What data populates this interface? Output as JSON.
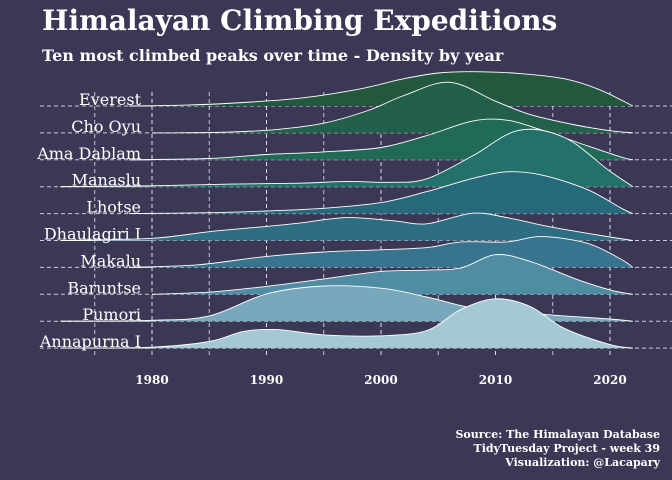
{
  "title": "Himalayan Climbing Expeditions",
  "subtitle": "Ten most climbed peaks over time - Density by year",
  "caption": {
    "line1": "Source: The Himalayan Database",
    "line2": "TidyTuesday Project - week 39",
    "line3": "Visualization: @Lacapary"
  },
  "colors": {
    "background": "#3b3856",
    "grid": "#ffffff",
    "outline": "#ffffff",
    "text": "#ffffff"
  },
  "chart_data": {
    "type": "area",
    "subtype": "ridgeline-density",
    "title": "Himalayan Climbing Expeditions",
    "subtitle": "Ten most climbed peaks over time - Density by year",
    "xlabel": "",
    "ylabel": "",
    "xlim": [
      1972,
      2024
    ],
    "xticks": [
      1980,
      1990,
      2000,
      2010,
      2020
    ],
    "grid": true,
    "legend": "none",
    "series": [
      {
        "name": "Everest",
        "color": "#23583f",
        "x": [
          1978,
          1983,
          1988,
          1993,
          1998,
          2002,
          2005,
          2008,
          2012,
          2016,
          2019,
          2022
        ],
        "y": [
          0.0,
          0.02,
          0.08,
          0.18,
          0.38,
          0.62,
          0.75,
          0.78,
          0.74,
          0.62,
          0.38,
          0.0
        ]
      },
      {
        "name": "Cho Oyu",
        "color": "#23604a",
        "x": [
          1982,
          1987,
          1991,
          1995,
          1999,
          2002,
          2006,
          2010,
          2013,
          2017,
          2020,
          2022
        ],
        "y": [
          0.0,
          0.02,
          0.08,
          0.22,
          0.52,
          0.85,
          1.15,
          0.72,
          0.42,
          0.18,
          0.05,
          0.0
        ]
      },
      {
        "name": "Ama Dablam",
        "color": "#226a58",
        "x": [
          1978,
          1985,
          1990,
          1995,
          2000,
          2004,
          2008,
          2011,
          2014,
          2018,
          2021,
          2022
        ],
        "y": [
          0.0,
          0.03,
          0.12,
          0.18,
          0.28,
          0.55,
          0.88,
          0.9,
          0.68,
          0.32,
          0.06,
          0.0
        ]
      },
      {
        "name": "Manaslu",
        "color": "#24716a",
        "x": [
          1972,
          1980,
          1987,
          1993,
          1997,
          2001,
          2004,
          2008,
          2012,
          2016,
          2020,
          2022
        ],
        "y": [
          0.0,
          0.02,
          0.06,
          0.08,
          0.12,
          0.1,
          0.18,
          0.7,
          1.28,
          1.12,
          0.35,
          0.0
        ]
      },
      {
        "name": "Lhotse",
        "color": "#26697a",
        "x": [
          1978,
          1985,
          1990,
          1995,
          2000,
          2004,
          2008,
          2011,
          2014,
          2018,
          2021,
          2022
        ],
        "y": [
          0.0,
          0.02,
          0.06,
          0.12,
          0.25,
          0.5,
          0.8,
          0.95,
          0.88,
          0.55,
          0.12,
          0.0
        ]
      },
      {
        "name": "Dhaulagiri I",
        "color": "#2d6e82",
        "x": [
          1972,
          1980,
          1985,
          1990,
          1993,
          1997,
          2001,
          2004,
          2008,
          2011,
          2015,
          2020,
          2022
        ],
        "y": [
          0.0,
          0.05,
          0.2,
          0.32,
          0.4,
          0.52,
          0.45,
          0.38,
          0.62,
          0.52,
          0.3,
          0.08,
          0.0
        ]
      },
      {
        "name": "Makalu",
        "color": "#38748e",
        "x": [
          1978,
          1984,
          1990,
          1995,
          2000,
          2004,
          2007,
          2011,
          2014,
          2018,
          2021,
          2022
        ],
        "y": [
          0.0,
          0.06,
          0.25,
          0.35,
          0.4,
          0.45,
          0.58,
          0.58,
          0.7,
          0.55,
          0.18,
          0.0
        ]
      },
      {
        "name": "Baruntse",
        "color": "#508da5",
        "x": [
          1980,
          1985,
          1990,
          1995,
          2000,
          2004,
          2007,
          2010,
          2013,
          2017,
          2020,
          2022
        ],
        "y": [
          0.0,
          0.05,
          0.18,
          0.35,
          0.52,
          0.55,
          0.6,
          0.9,
          0.75,
          0.35,
          0.1,
          0.0
        ]
      },
      {
        "name": "Pumori",
        "color": "#79a8bc",
        "x": [
          1972,
          1980,
          1985,
          1990,
          1995,
          2000,
          2004,
          2008,
          2012,
          2016,
          2020,
          2022
        ],
        "y": [
          0.0,
          0.02,
          0.12,
          0.62,
          0.8,
          0.75,
          0.55,
          0.3,
          0.2,
          0.12,
          0.05,
          0.0
        ]
      },
      {
        "name": "Annapurna I",
        "color": "#a5c9d4",
        "x": [
          1972,
          1980,
          1985,
          1988,
          1991,
          1995,
          2000,
          2004,
          2007,
          2010,
          2013,
          2016,
          2020,
          2022
        ],
        "y": [
          0.0,
          0.02,
          0.15,
          0.38,
          0.42,
          0.3,
          0.28,
          0.4,
          0.88,
          1.12,
          0.95,
          0.45,
          0.08,
          0.0
        ]
      }
    ]
  }
}
